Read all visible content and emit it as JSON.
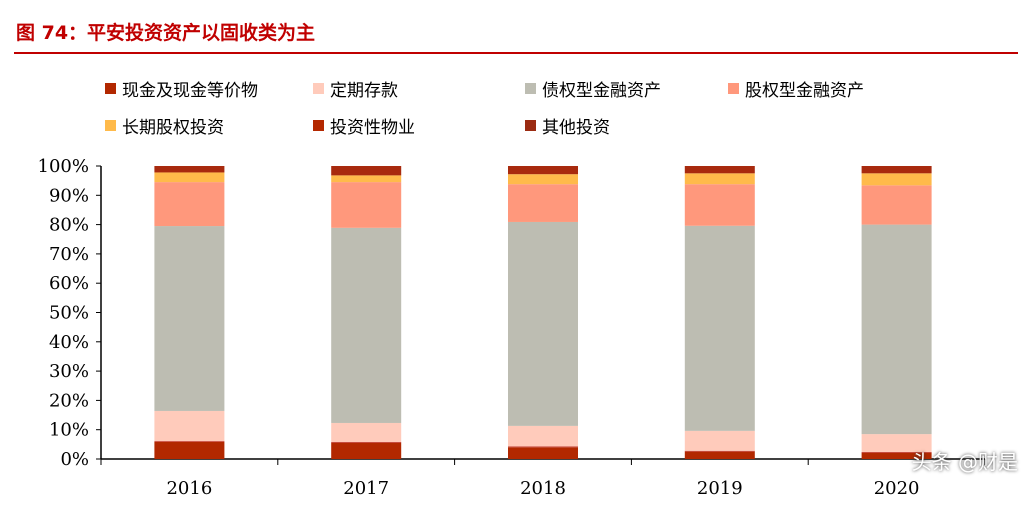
{
  "title": "图 74：平安投资资产以固收类为主",
  "watermark": "头条 @财是",
  "chart_data": {
    "type": "bar",
    "stacked": true,
    "categories": [
      "2016",
      "2017",
      "2018",
      "2019",
      "2020"
    ],
    "ylim": [
      0,
      100
    ],
    "yticks": [
      "0%",
      "10%",
      "20%",
      "30%",
      "40%",
      "50%",
      "60%",
      "70%",
      "80%",
      "90%",
      "100%"
    ],
    "legend_position": "top",
    "grid": false,
    "series": [
      {
        "name": "现金及现金等价物",
        "color": "#B22800",
        "values": [
          5.8,
          5.5,
          4.0,
          2.5,
          2.1
        ]
      },
      {
        "name": "投资性物业",
        "color": "#C0392B",
        "values": [
          0.3,
          0.3,
          0.3,
          0.3,
          0.3
        ]
      },
      {
        "name": "定期存款",
        "color": "#FFCBBB",
        "values": [
          10.3,
          6.5,
          7.0,
          6.8,
          6.1
        ]
      },
      {
        "name": "债权型金融资产",
        "color": "#BDBDB2",
        "values": [
          63.1,
          66.6,
          69.6,
          70.0,
          71.5
        ]
      },
      {
        "name": "股权型金融资产",
        "color": "#FF987C",
        "values": [
          15.0,
          15.6,
          12.9,
          14.2,
          13.4
        ]
      },
      {
        "name": "长期股权投资",
        "color": "#FFBA4A",
        "values": [
          3.3,
          2.3,
          3.4,
          3.7,
          4.1
        ]
      },
      {
        "name": "其他投资",
        "color": "#A82A0E",
        "values": [
          2.2,
          3.2,
          2.8,
          2.5,
          2.5
        ]
      }
    ]
  },
  "legend": [
    {
      "label": "现金及现金等价物",
      "color": "#B22800"
    },
    {
      "label": "定期存款",
      "color": "#FFCBBB"
    },
    {
      "label": "债权型金融资产",
      "color": "#BDBDB2"
    },
    {
      "label": "股权型金融资产",
      "color": "#FF987C"
    },
    {
      "label": "长期股权投资",
      "color": "#FFBA4A"
    },
    {
      "label": "投资性物业",
      "color": "#B42800"
    },
    {
      "label": "其他投资",
      "color": "#9B2B12"
    }
  ]
}
